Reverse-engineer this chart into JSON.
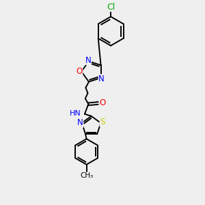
{
  "bg_color": "#efefef",
  "bond_color": "#000000",
  "bond_width": 1.4,
  "atom_colors": {
    "N": "#0000ff",
    "O": "#ff0000",
    "S": "#cccc00",
    "Cl": "#00aa00",
    "C": "#000000",
    "H": "#555555"
  },
  "font_size": 8.0
}
